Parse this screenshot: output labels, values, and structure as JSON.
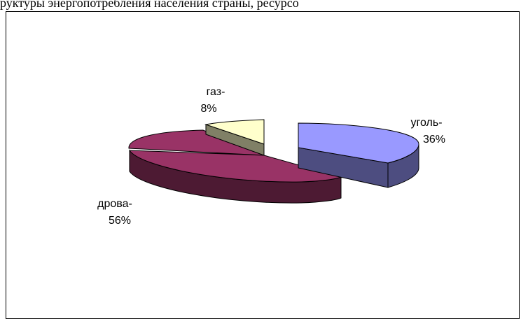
{
  "header_text": "руктуры энергопотребления населения страны, ресурсо",
  "chart_data": {
    "type": "pie",
    "title": "",
    "series": [
      {
        "label_line1": "уголь-",
        "label_line2": "36%",
        "value": 36,
        "top_color": "#9999ff",
        "side_color": "#4d4d80"
      },
      {
        "label_line1": "газ-",
        "label_line2": "8%",
        "value": 8,
        "top_color": "#ffffcc",
        "side_color": "#808066"
      },
      {
        "label_line1": "дрова-",
        "label_line2": "56%",
        "value": 56,
        "top_color": "#993366",
        "side_color": "#4d1a33"
      }
    ]
  }
}
